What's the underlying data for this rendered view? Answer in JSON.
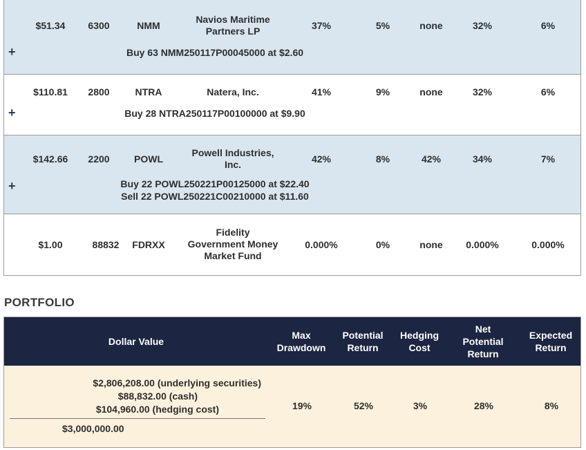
{
  "positions": [
    {
      "price": "$51.34",
      "shares": "6300",
      "ticker": "NMM",
      "company_lines": [
        "Navios Maritime",
        "Partners LP"
      ],
      "max_drawdown": "37%",
      "potential_return": "5%",
      "hedging_cost": "none",
      "net_potential_return": "32%",
      "expected_return": "6%",
      "plus_icon": "+",
      "trades": [
        "Buy 63 NMM250117P00045000 at $2.60"
      ]
    },
    {
      "price": "$110.81",
      "shares": "2800",
      "ticker": "NTRA",
      "company_lines": [
        "Natera, Inc."
      ],
      "max_drawdown": "41%",
      "potential_return": "9%",
      "hedging_cost": "none",
      "net_potential_return": "32%",
      "expected_return": "6%",
      "plus_icon": "+",
      "trades": [
        "Buy 28 NTRA250117P00100000 at $9.90"
      ]
    },
    {
      "price": "$142.66",
      "shares": "2200",
      "ticker": "POWL",
      "company_lines": [
        "Powell Industries,",
        "Inc."
      ],
      "max_drawdown": "42%",
      "potential_return": "8%",
      "hedging_cost": "42%",
      "net_potential_return": "34%",
      "expected_return": "7%",
      "plus_icon": "+",
      "trades": [
        "Buy 22 POWL250221P00125000 at $22.40",
        "Sell 22 POWL250221C00210000 at $11.60"
      ]
    },
    {
      "price": "$1.00",
      "shares": "88832",
      "ticker": "FDRXX",
      "company_lines": [
        "Fidelity",
        "Government Money",
        "Market Fund"
      ],
      "max_drawdown": "0.000%",
      "potential_return": "0%",
      "hedging_cost": "none",
      "net_potential_return": "0.000%",
      "expected_return": "0.000%"
    }
  ],
  "portfolio": {
    "heading": "PORTFOLIO",
    "headers": {
      "dollar_value": "Dollar Value",
      "max_drawdown": [
        "Max",
        "Drawdown"
      ],
      "potential_return": [
        "Potential",
        "Return"
      ],
      "hedging_cost": [
        "Hedging",
        "Cost"
      ],
      "net_potential_return": [
        "Net",
        "Potential",
        "Return"
      ],
      "expected_return": [
        "Expected",
        "Return"
      ]
    },
    "dollar_value_lines": [
      "$2,806,208.00 (underlying securities)",
      "$88,832.00 (cash)",
      "$104,960.00 (hedging cost)"
    ],
    "total": "$3,000,000.00",
    "max_drawdown": "19%",
    "potential_return": "52%",
    "hedging_cost": "3%",
    "net_potential_return": "28%",
    "expected_return": "8%"
  },
  "colors": {
    "row_blue": "#d9e6f0",
    "header_navy": "#1c2541",
    "portfolio_body": "#fcf1dc"
  }
}
